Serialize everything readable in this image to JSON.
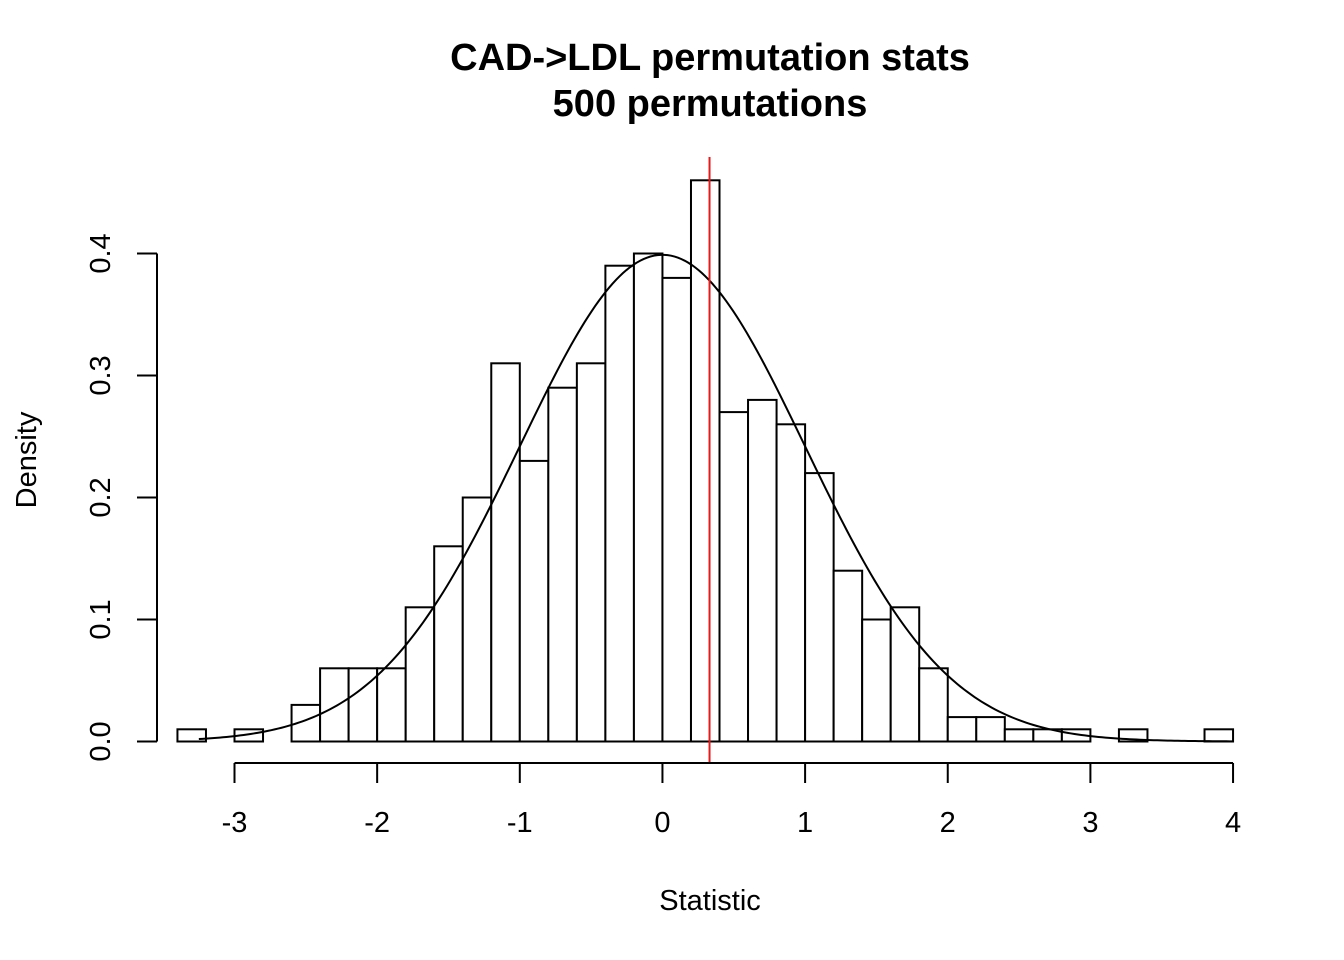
{
  "chart_data": {
    "type": "bar",
    "title": "CAD->LDL permutation stats",
    "subtitle": "500 permutations",
    "xlabel": "Statistic",
    "ylabel": "Density",
    "xlim": [
      -3.5,
      4.1
    ],
    "ylim": [
      0,
      0.46
    ],
    "x_ticks": [
      -3,
      -2,
      -1,
      0,
      1,
      2,
      3,
      4
    ],
    "y_ticks": [
      0.0,
      0.1,
      0.2,
      0.3,
      0.4
    ],
    "y_tick_labels": [
      "0.0",
      "0.1",
      "0.2",
      "0.3",
      "0.4"
    ],
    "bin_width": 0.2,
    "bins": [
      {
        "x0": -3.4,
        "x1": -3.2,
        "density": 0.01
      },
      {
        "x0": -3.2,
        "x1": -3.0,
        "density": 0.0
      },
      {
        "x0": -3.0,
        "x1": -2.8,
        "density": 0.01
      },
      {
        "x0": -2.8,
        "x1": -2.6,
        "density": 0.0
      },
      {
        "x0": -2.6,
        "x1": -2.4,
        "density": 0.03
      },
      {
        "x0": -2.4,
        "x1": -2.2,
        "density": 0.06
      },
      {
        "x0": -2.2,
        "x1": -2.0,
        "density": 0.06
      },
      {
        "x0": -2.0,
        "x1": -1.8,
        "density": 0.06
      },
      {
        "x0": -1.8,
        "x1": -1.6,
        "density": 0.11
      },
      {
        "x0": -1.6,
        "x1": -1.4,
        "density": 0.16
      },
      {
        "x0": -1.4,
        "x1": -1.2,
        "density": 0.2
      },
      {
        "x0": -1.2,
        "x1": -1.0,
        "density": 0.31
      },
      {
        "x0": -1.0,
        "x1": -0.8,
        "density": 0.23
      },
      {
        "x0": -0.8,
        "x1": -0.6,
        "density": 0.29
      },
      {
        "x0": -0.6,
        "x1": -0.4,
        "density": 0.31
      },
      {
        "x0": -0.4,
        "x1": -0.2,
        "density": 0.39
      },
      {
        "x0": -0.2,
        "x1": 0.0,
        "density": 0.4
      },
      {
        "x0": 0.0,
        "x1": 0.2,
        "density": 0.38
      },
      {
        "x0": 0.2,
        "x1": 0.4,
        "density": 0.46
      },
      {
        "x0": 0.4,
        "x1": 0.6,
        "density": 0.27
      },
      {
        "x0": 0.6,
        "x1": 0.8,
        "density": 0.28
      },
      {
        "x0": 0.8,
        "x1": 1.0,
        "density": 0.26
      },
      {
        "x0": 1.0,
        "x1": 1.2,
        "density": 0.22
      },
      {
        "x0": 1.2,
        "x1": 1.4,
        "density": 0.14
      },
      {
        "x0": 1.4,
        "x1": 1.6,
        "density": 0.1
      },
      {
        "x0": 1.6,
        "x1": 1.8,
        "density": 0.11
      },
      {
        "x0": 1.8,
        "x1": 2.0,
        "density": 0.06
      },
      {
        "x0": 2.0,
        "x1": 2.2,
        "density": 0.02
      },
      {
        "x0": 2.2,
        "x1": 2.4,
        "density": 0.02
      },
      {
        "x0": 2.4,
        "x1": 2.6,
        "density": 0.01
      },
      {
        "x0": 2.6,
        "x1": 2.8,
        "density": 0.01
      },
      {
        "x0": 2.8,
        "x1": 3.0,
        "density": 0.01
      },
      {
        "x0": 3.0,
        "x1": 3.2,
        "density": 0.0
      },
      {
        "x0": 3.2,
        "x1": 3.4,
        "density": 0.01
      },
      {
        "x0": 3.4,
        "x1": 3.6,
        "density": 0.0
      },
      {
        "x0": 3.6,
        "x1": 3.8,
        "density": 0.0
      },
      {
        "x0": 3.8,
        "x1": 4.0,
        "density": 0.01
      }
    ],
    "density_curve": {
      "distribution": "normal",
      "mean": 0,
      "sd": 1,
      "x_range": [
        -3.25,
        4.0
      ]
    },
    "observed_line": {
      "x": 0.33,
      "color": "#e41a1c"
    },
    "grid": false,
    "legend": "none"
  }
}
